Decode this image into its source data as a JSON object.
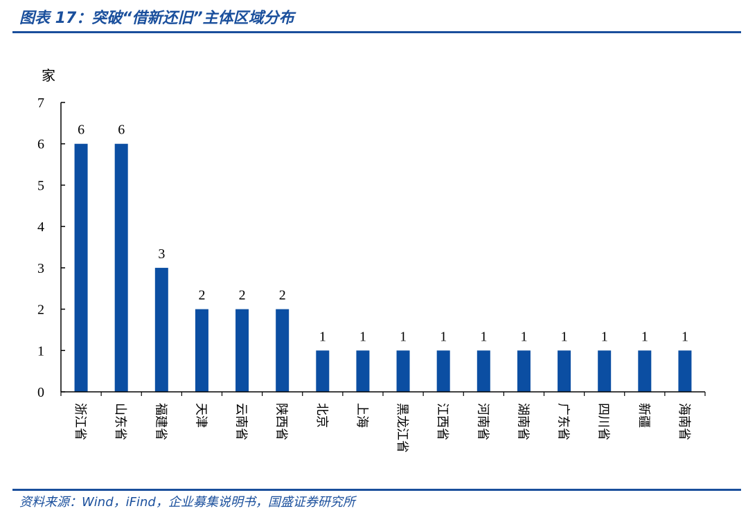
{
  "header": {
    "title": "图表 17：突破“借新还旧”主体区域分布"
  },
  "footer": {
    "source": "资料来源：Wind，iFind，企业募集说明书，国盛证券研究所"
  },
  "colors": {
    "accent": "#1a4f9c",
    "bar": "#0b4ea2"
  },
  "chart_data": {
    "type": "bar",
    "title": "",
    "xlabel": "",
    "ylabel": "家",
    "ylim": [
      0,
      7
    ],
    "yticks": [
      0,
      1,
      2,
      3,
      4,
      5,
      6,
      7
    ],
    "grid": false,
    "categories": [
      "浙江省",
      "山东省",
      "福建省",
      "天津",
      "云南省",
      "陕西省",
      "北京",
      "上海",
      "黑龙江省",
      "江西省",
      "河南省",
      "湖南省",
      "广东省",
      "四川省",
      "新疆",
      "海南省"
    ],
    "values": [
      6,
      6,
      3,
      2,
      2,
      2,
      1,
      1,
      1,
      1,
      1,
      1,
      1,
      1,
      1,
      1
    ],
    "data_labels": true
  }
}
